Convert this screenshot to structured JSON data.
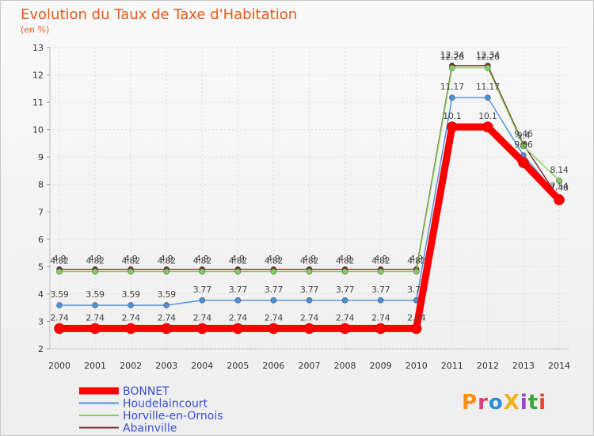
{
  "chart_data": {
    "type": "line",
    "title": "Evolution du Taux de Taxe d'Habitation",
    "subtitle": "(en %)",
    "ylim": [
      2,
      13
    ],
    "y_ticks": [
      "2",
      "3",
      "4",
      "5",
      "6",
      "7",
      "8",
      "9",
      "10",
      "11",
      "12",
      "13"
    ],
    "x": [
      "2000",
      "2001",
      "2002",
      "2003",
      "2004",
      "2005",
      "2006",
      "2007",
      "2008",
      "2009",
      "2010",
      "2011",
      "2012",
      "2013",
      "2014"
    ],
    "grid": true,
    "legend_position": "bottom-left",
    "series": [
      {
        "name": "Abainville",
        "color": "#7a2e2e",
        "values": [
          4.9,
          4.9,
          4.9,
          4.9,
          4.9,
          4.9,
          4.9,
          4.9,
          4.9,
          4.9,
          4.9,
          12.34,
          12.34,
          9.46,
          7.48
        ],
        "labels": [
          "4.9",
          "4.9",
          "4.9",
          "4.9",
          "4.9",
          "4.9",
          "4.9",
          "4.9",
          "4.9",
          "4.9",
          "4.9",
          "12.34",
          "12.34",
          "9.46",
          "7.48"
        ]
      },
      {
        "name": "Horville-en-Ornois",
        "color": "#7ed45a",
        "values": [
          4.82,
          4.82,
          4.82,
          4.82,
          4.82,
          4.82,
          4.82,
          4.82,
          4.82,
          4.82,
          4.82,
          12.26,
          12.26,
          9.4,
          8.14
        ],
        "labels": [
          "4.82",
          "4.82",
          "4.82",
          "4.82",
          "4.82",
          "4.82",
          "4.82",
          "4.82",
          "4.82",
          "4.82",
          "4.82",
          "12.26",
          "12.26",
          "9.4",
          "8.14"
        ]
      },
      {
        "name": "Houdelaincourt",
        "color": "#4a90d9",
        "values": [
          3.59,
          3.59,
          3.59,
          3.59,
          3.77,
          3.77,
          3.77,
          3.77,
          3.77,
          3.77,
          3.77,
          11.17,
          11.17,
          9.06,
          7.54
        ],
        "labels": [
          "3.59",
          "3.59",
          "3.59",
          "3.59",
          "3.77",
          "3.77",
          "3.77",
          "3.77",
          "3.77",
          "3.77",
          "3.77",
          "11.17",
          "11.17",
          "9.06",
          "7.54"
        ]
      },
      {
        "name": "BONNET",
        "color": "#ff0000",
        "values": [
          2.74,
          2.74,
          2.74,
          2.74,
          2.74,
          2.74,
          2.74,
          2.74,
          2.74,
          2.74,
          2.74,
          10.1,
          10.1,
          8.8,
          7.44
        ],
        "labels": [
          "2.74",
          "2.74",
          "2.74",
          "2.74",
          "2.74",
          "2.74",
          "2.74",
          "2.74",
          "2.74",
          "2.74",
          "2.74",
          "10.1",
          "10.1",
          "",
          ""
        ]
      }
    ],
    "legend": [
      "BONNET",
      "Houdelaincourt",
      "Horville-en-Ornois",
      "Abainville"
    ]
  },
  "logo": {
    "text": "ProXiti",
    "colors": [
      "#ff8c1a",
      "#e23b7a",
      "#2c8fd6",
      "#f0b020",
      "#9a3fd1",
      "#3aa63a",
      "#e8432a"
    ]
  }
}
